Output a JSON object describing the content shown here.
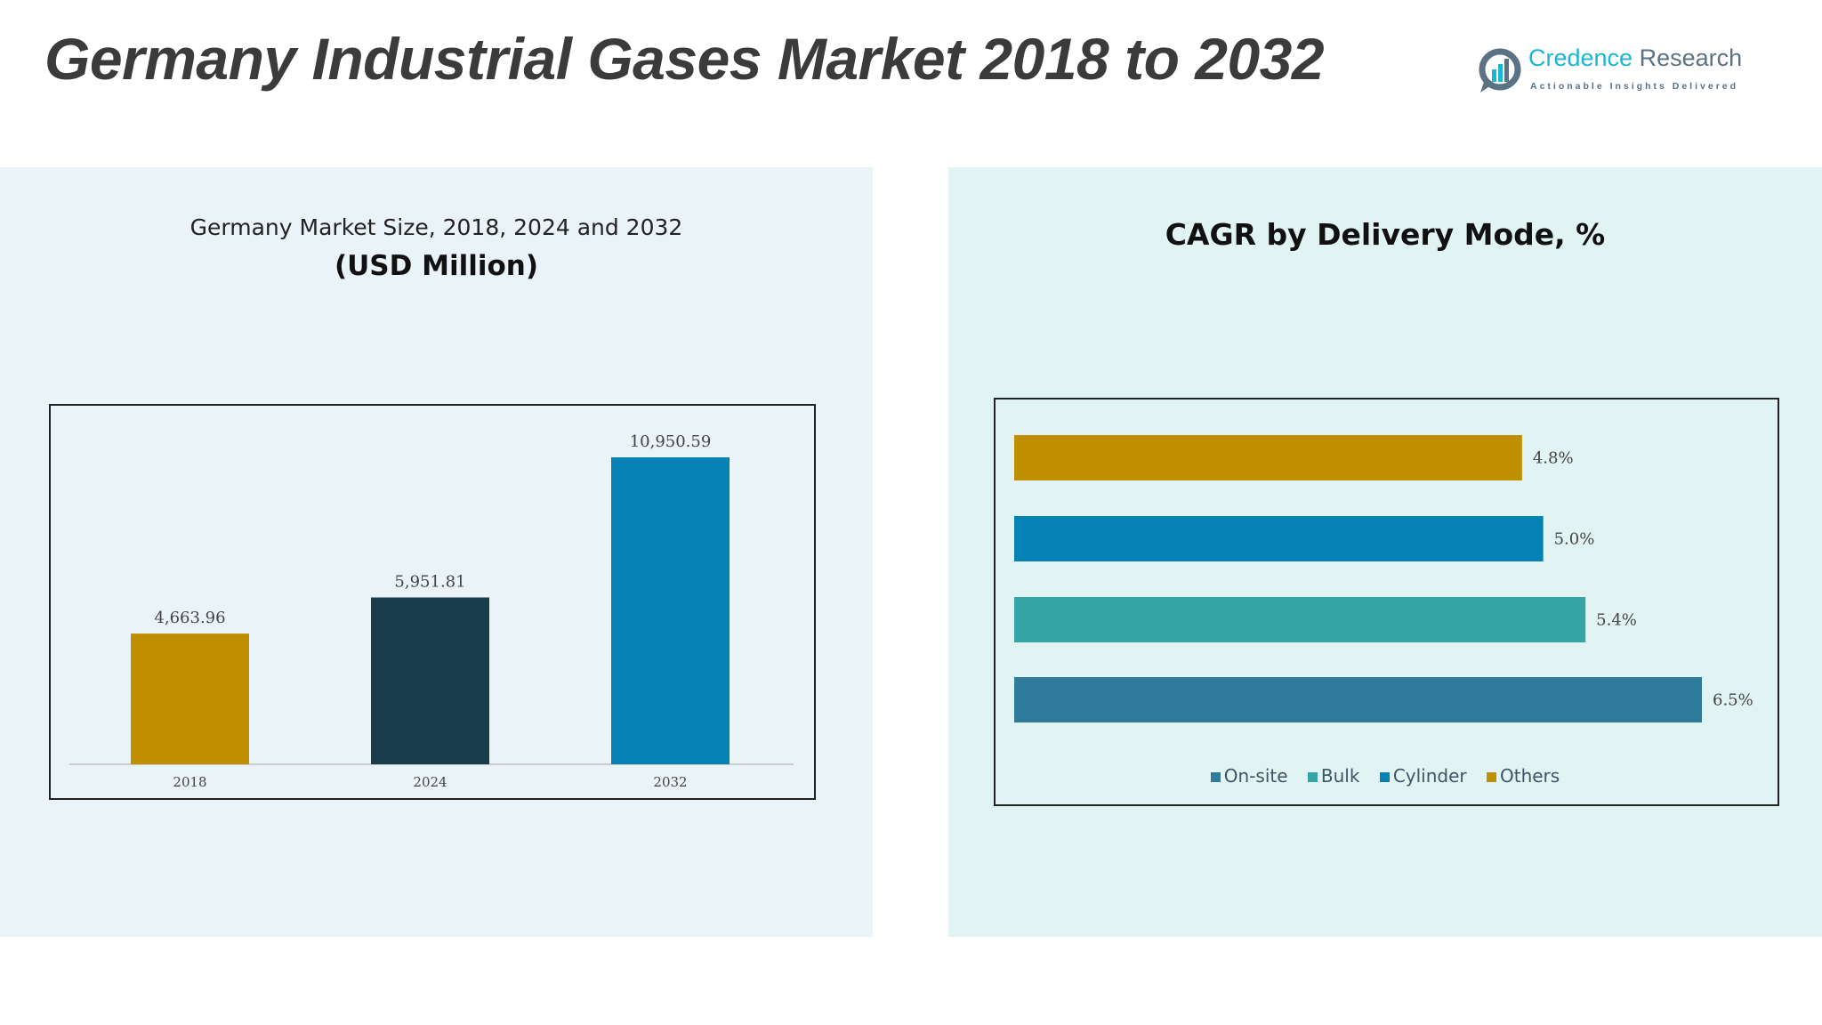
{
  "title": "Germany Industrial Gases Market 2018 to 2032",
  "logo": {
    "name": "Credence Research",
    "tagline": "Actionable Insights Delivered"
  },
  "chart_data": [
    {
      "type": "bar",
      "title": "Germany Market Size, 2018, 2024 and 2032",
      "subtitle": "(USD Million)",
      "categories": [
        "2018",
        "2024",
        "2032"
      ],
      "values": [
        4663.96,
        5951.81,
        10950.59
      ],
      "value_labels": [
        "4,663.96",
        "5,951.81",
        "10,950.59"
      ],
      "colors": [
        "#c08f00",
        "#173c4c",
        "#0582b5"
      ]
    },
    {
      "type": "bar",
      "orientation": "horizontal",
      "title": "CAGR by Delivery Mode, %",
      "categories": [
        "Others",
        "Cylinder",
        "Bulk",
        "On-site"
      ],
      "values": [
        4.8,
        5.0,
        5.4,
        6.5
      ],
      "value_labels": [
        "4.8%",
        "5.0%",
        "5.4%",
        "6.5%"
      ],
      "colors": [
        "#c08f00",
        "#0582b5",
        "#34a4a4",
        "#2e7b9b"
      ],
      "legend": [
        {
          "name": "On-site",
          "color": "#2e7b9b"
        },
        {
          "name": "Bulk",
          "color": "#34a4a4"
        },
        {
          "name": "Cylinder",
          "color": "#0582b5"
        },
        {
          "name": "Others",
          "color": "#c08f00"
        }
      ],
      "legend_position": "bottom"
    }
  ]
}
